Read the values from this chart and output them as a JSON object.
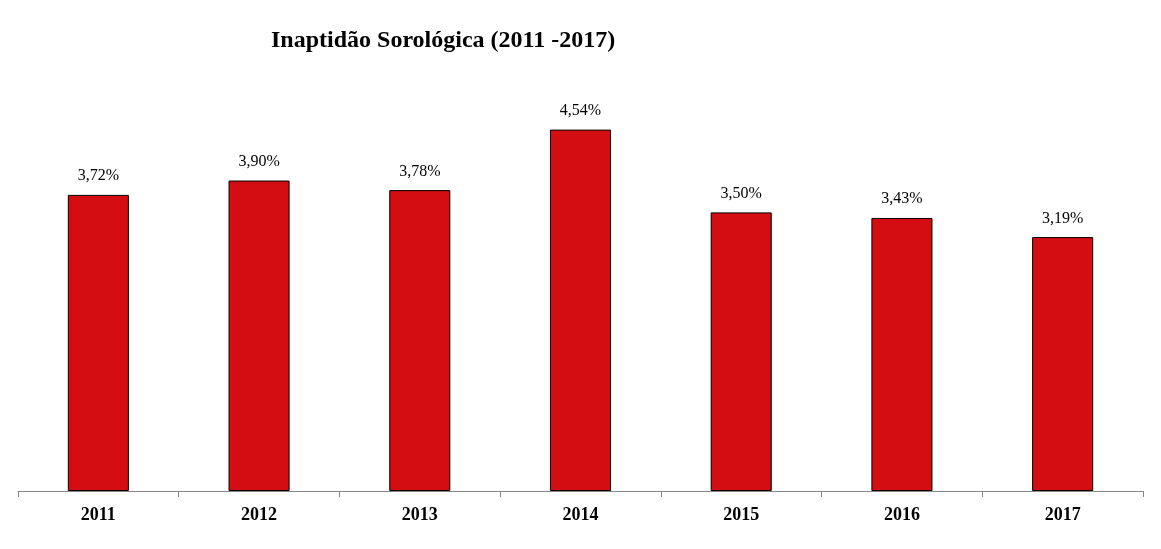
{
  "chart_data": {
    "type": "bar",
    "title": "Inaptidão Sorológica (2011 -2017)",
    "categories": [
      "2011",
      "2012",
      "2013",
      "2014",
      "2015",
      "2016",
      "2017"
    ],
    "values": [
      3.72,
      3.9,
      3.78,
      4.54,
      3.5,
      3.43,
      3.19
    ],
    "value_labels": [
      "3,72%",
      "3,90%",
      "3,78%",
      "4,54%",
      "3,50%",
      "3,43%",
      "3,19%"
    ],
    "color": "#d40d12"
  }
}
